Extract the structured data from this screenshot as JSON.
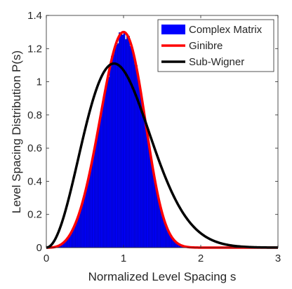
{
  "chart_data": {
    "type": "histogram+line",
    "xlabel": "Normalized Level Spacing s",
    "ylabel": "Level Spacing Distribution P(s)",
    "xlim": [
      0,
      3
    ],
    "ylim": [
      0,
      1.4
    ],
    "x_ticks": [
      "0",
      "1",
      "2",
      "3"
    ],
    "y_ticks": [
      "0",
      "0.2",
      "0.4",
      "0.6",
      "0.8",
      "1",
      "1.2",
      "1.4"
    ],
    "grid": false,
    "legend_position": "top-right",
    "legend": [
      {
        "label": "Complex Matrix",
        "kind": "bar",
        "color": "#0000ff"
      },
      {
        "label": "Ginibre",
        "kind": "line",
        "color": "#ff0000"
      },
      {
        "label": "Sub-Wigner",
        "kind": "line",
        "color": "#000000"
      }
    ],
    "histogram": {
      "name": "Complex Matrix",
      "color": "#0000ff",
      "bin_width": 0.02,
      "x_start": 0,
      "x_end": 2.0,
      "peak_value": 1.29,
      "peak_x": 1.0
    },
    "series": [
      {
        "name": "Ginibre",
        "color": "#ff0000",
        "peak_x": 1.0,
        "peak_y": 1.3
      },
      {
        "name": "Sub-Wigner",
        "color": "#000000",
        "peak_x": 0.88,
        "peak_y": 1.11
      }
    ]
  }
}
